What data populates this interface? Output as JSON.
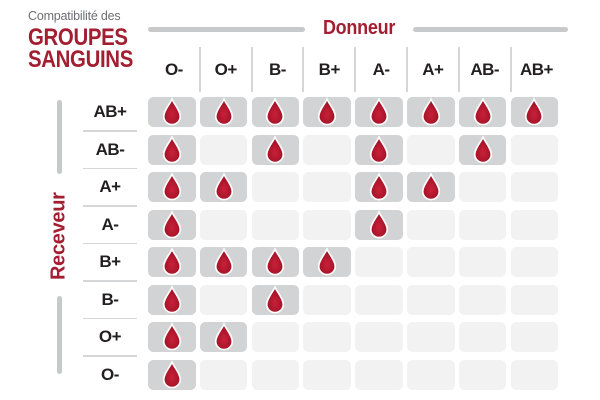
{
  "header": {
    "title_small": "Compatibilité des",
    "title_line1": "GROUPES",
    "title_line2": "SANGUINS",
    "donor_axis_label": "Donneur",
    "receiver_axis_label": "Receveur"
  },
  "icons": {
    "compatible_marker": "blood-drop-icon"
  },
  "colors": {
    "accent_red": "#A41E31",
    "drop_red_light": "#C41F38",
    "drop_red_dark": "#970E20",
    "drop_stroke": "#FFFFFF",
    "cell_filled": "#D2D3D4",
    "cell_empty": "#F2F2F3",
    "separator_gray": "#D5D6D7",
    "axis_line_gray": "#C8C9CB",
    "title_gray": "#6D6E71",
    "label_black": "#231F20"
  },
  "chart_data": {
    "type": "heatmap",
    "title": "Compatibilité des GROUPES SANGUINS",
    "x_axis_label": "Donneur",
    "y_axis_label": "Receveur",
    "columns": [
      "O-",
      "O+",
      "B-",
      "B+",
      "A-",
      "A+",
      "AB-",
      "AB+"
    ],
    "rows": [
      "AB+",
      "AB-",
      "A+",
      "A-",
      "B+",
      "B-",
      "O+",
      "O-"
    ],
    "values": [
      [
        1,
        1,
        1,
        1,
        1,
        1,
        1,
        1
      ],
      [
        1,
        0,
        1,
        0,
        1,
        0,
        1,
        0
      ],
      [
        1,
        1,
        0,
        0,
        1,
        1,
        0,
        0
      ],
      [
        1,
        0,
        0,
        0,
        1,
        0,
        0,
        0
      ],
      [
        1,
        1,
        1,
        1,
        0,
        0,
        0,
        0
      ],
      [
        1,
        0,
        1,
        0,
        0,
        0,
        0,
        0
      ],
      [
        1,
        1,
        0,
        0,
        0,
        0,
        0,
        0
      ],
      [
        1,
        0,
        0,
        0,
        0,
        0,
        0,
        0
      ]
    ],
    "value_meaning": "1 = compatible (blood drop icon shown), 0 = not compatible (empty cell)",
    "legend_position": "none",
    "grid": "off"
  }
}
